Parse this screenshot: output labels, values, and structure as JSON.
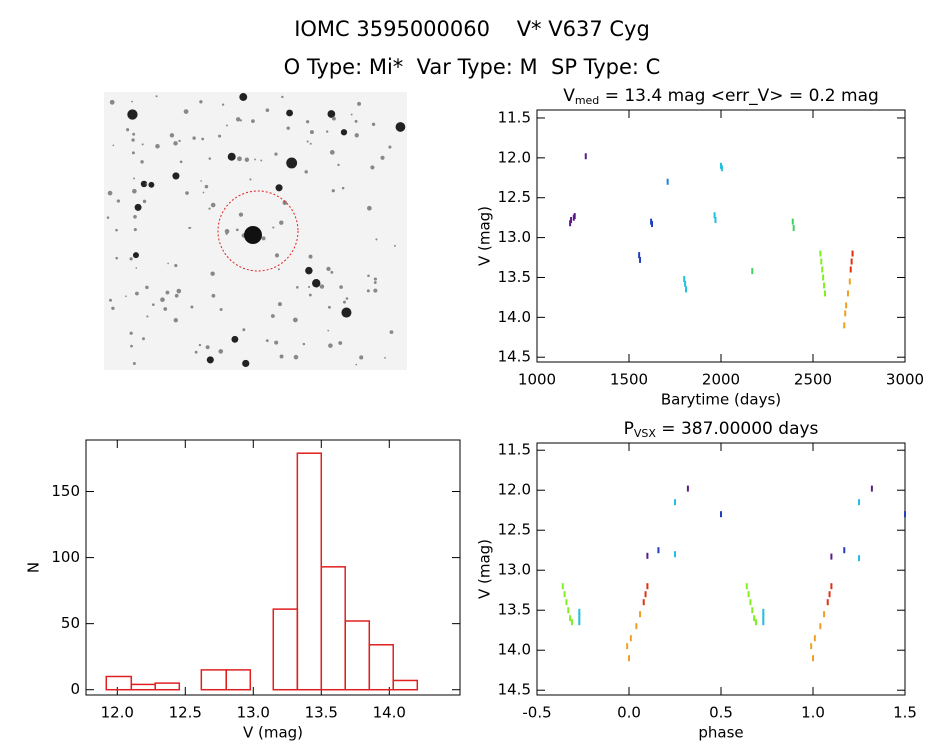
{
  "header": {
    "title": "IOMC 3595000060    V* V637 Cyg",
    "subtitle": "O Type: Mi*  Var Type: M  SP Type: C"
  },
  "chart_data": [
    {
      "type": "scatter",
      "title": {
        "main": "V",
        "sub": "med",
        "rest": " = 13.4 mag <err_V> = 0.2 mag"
      },
      "x_label": "Barytime (days)",
      "y_label": "V (mag)",
      "xlim": [
        1000,
        3000
      ],
      "xticks": [
        1000,
        1500,
        2000,
        2500,
        3000
      ],
      "ylim": [
        14.56,
        11.4
      ],
      "yticks": [
        11.5,
        {
          "value": 12,
          "label": "12.0"
        },
        12.5,
        {
          "value": 13,
          "label": "13.0"
        },
        13.5,
        {
          "value": 14,
          "label": "14.0"
        },
        14.5
      ],
      "series": [
        {
          "color": "#5a1a8a",
          "x": [
            1180,
            1185,
            1200,
            1205,
            1265
          ],
          "values": [
            12.82,
            12.78,
            12.75,
            12.73,
            11.98
          ]
        },
        {
          "color": "#2040c0",
          "x": [
            1555,
            1560,
            1620,
            1625
          ],
          "values": [
            13.22,
            13.28,
            12.8,
            12.83
          ]
        },
        {
          "color": "#2080e0",
          "x": [
            1710
          ],
          "values": [
            12.3
          ]
        },
        {
          "color": "#20c0e0",
          "x": [
            1800,
            1805,
            1810,
            1965,
            1970,
            2000,
            2005
          ],
          "values": [
            13.52,
            13.58,
            13.65,
            12.72,
            12.78,
            12.1,
            12.13
          ]
        },
        {
          "color": "#40d060",
          "x": [
            2170,
            2390,
            2395
          ],
          "values": [
            13.42,
            12.8,
            12.88
          ]
        },
        {
          "color": "#80f020",
          "x": [
            2540,
            2545,
            2550,
            2555,
            2560,
            2565
          ],
          "values": [
            13.2,
            13.3,
            13.4,
            13.5,
            13.6,
            13.7
          ]
        },
        {
          "color": "#f0a020",
          "x": [
            2670,
            2675,
            2680,
            2690,
            2700
          ],
          "values": [
            14.1,
            13.95,
            13.85,
            13.7,
            13.55
          ]
        },
        {
          "color": "#e03010",
          "x": [
            2705,
            2710,
            2715
          ],
          "values": [
            13.4,
            13.3,
            13.2
          ]
        }
      ]
    },
    {
      "type": "histogram",
      "x_label": "V (mag)",
      "y_label": "N",
      "color": "#e02020",
      "xlim": [
        11.77,
        14.52
      ],
      "xticks": [
        {
          "value": 12,
          "label": "12.0"
        },
        12.5,
        {
          "value": 13,
          "label": "13.0"
        },
        13.5,
        {
          "value": 14,
          "label": "14.0"
        }
      ],
      "ylim": [
        -4,
        189
      ],
      "yticks": [
        0,
        50,
        100,
        150
      ],
      "bins": [
        11.919,
        12.103,
        12.279,
        12.456,
        12.618,
        12.801,
        12.978,
        13.147,
        13.324,
        13.5,
        13.676,
        13.853,
        14.029,
        14.206
      ],
      "values": [
        10,
        4,
        5,
        0,
        15,
        15,
        0,
        61,
        179,
        93,
        52,
        34,
        7
      ]
    },
    {
      "type": "scatter",
      "title": {
        "main": "P",
        "sub": "VSX",
        "rest": " = 387.00000 days"
      },
      "x_label": "phase",
      "y_label": "V (mag)",
      "xlim": [
        -0.5,
        1.5
      ],
      "xticks": [
        -0.5,
        {
          "value": 0,
          "label": "0.0"
        },
        0.5,
        {
          "value": 1,
          "label": "1.0"
        },
        1.5
      ],
      "ylim": [
        14.56,
        11.41
      ],
      "yticks": [
        11.5,
        {
          "value": 12,
          "label": "12.0"
        },
        12.5,
        {
          "value": 13,
          "label": "13.0"
        },
        13.5,
        {
          "value": 14,
          "label": "14.0"
        },
        14.5
      ],
      "series": [
        {
          "color": "#80f020",
          "x": [
            -0.36,
            -0.35,
            -0.34,
            -0.33,
            -0.32,
            -0.31,
            0.64,
            0.65,
            0.66,
            0.67,
            0.68,
            0.69
          ],
          "values": [
            13.2,
            13.3,
            13.4,
            13.5,
            13.6,
            13.65,
            13.2,
            13.3,
            13.4,
            13.5,
            13.6,
            13.65
          ]
        },
        {
          "color": "#20c0e0",
          "x": [
            -0.27,
            -0.27,
            -0.27,
            0.25,
            0.25,
            0.73,
            0.73,
            0.73,
            1.25,
            1.25
          ],
          "values": [
            13.52,
            13.58,
            13.65,
            12.8,
            12.15,
            13.52,
            13.58,
            13.65,
            12.85,
            12.15
          ]
        },
        {
          "color": "#f0a020",
          "x": [
            -0.01,
            0.0,
            0.01,
            0.04,
            0.06,
            0.99,
            1.0,
            1.01,
            1.04,
            1.06
          ],
          "values": [
            13.95,
            14.1,
            13.85,
            13.7,
            13.55,
            13.95,
            14.1,
            13.85,
            13.7,
            13.55
          ]
        },
        {
          "color": "#e03010",
          "x": [
            0.08,
            0.09,
            0.1,
            1.08,
            1.09,
            1.1
          ],
          "values": [
            13.4,
            13.3,
            13.2,
            13.4,
            13.3,
            13.2
          ]
        },
        {
          "color": "#5a1a8a",
          "x": [
            0.1,
            0.32,
            1.1,
            1.32
          ],
          "values": [
            12.82,
            11.98,
            12.83,
            11.98
          ]
        },
        {
          "color": "#2040c0",
          "x": [
            0.16,
            0.5,
            1.17,
            1.5
          ],
          "values": [
            12.75,
            12.3,
            12.75,
            12.3
          ]
        }
      ]
    }
  ]
}
